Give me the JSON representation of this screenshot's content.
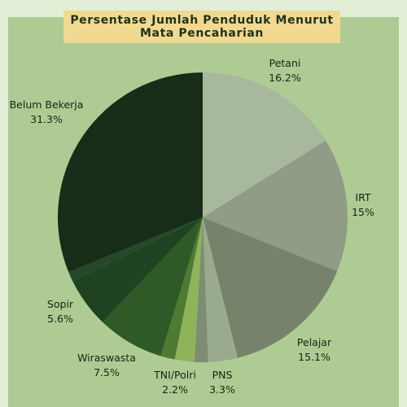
{
  "chart_data": {
    "type": "pie",
    "title_lines": [
      "Persentase Jumlah Penduduk Menurut",
      "Mata Pencaharian"
    ],
    "slices": [
      {
        "label": "Petani",
        "value": 16.2,
        "value_text": "16.2%",
        "color": "#a7b89c"
      },
      {
        "label": "IRT",
        "value": 15,
        "value_text": "15%",
        "color": "#909c85"
      },
      {
        "label": "Pelajar",
        "value": 15.1,
        "value_text": "15.1%",
        "color": "#76836a"
      },
      {
        "label": "PNS",
        "value": 3.3,
        "value_text": "3.3%",
        "color": "#9aab8d"
      },
      {
        "label": "",
        "value": 1.5,
        "value_text": "",
        "color": "#7d8c72"
      },
      {
        "label": "TNI/Polri",
        "value": 2.2,
        "value_text": "2.2%",
        "color": "#8db35b"
      },
      {
        "label": "",
        "value": 1.6,
        "value_text": "",
        "color": "#4e7a32"
      },
      {
        "label": "Wiraswasta",
        "value": 7.5,
        "value_text": "7.5%",
        "color": "#2f5927"
      },
      {
        "label": "Sopir",
        "value": 5.6,
        "value_text": "5.6%",
        "color": "#1f4220"
      },
      {
        "label": "",
        "value": 1.1,
        "value_text": "",
        "color": "#24482a"
      },
      {
        "label": "Belum Bekerja",
        "value": 31.3,
        "value_text": "31.3%",
        "color": "#182c18"
      }
    ]
  },
  "colors": {
    "background": "#e3eed6",
    "panel": "#aecb94",
    "title_box": "#f1d992",
    "text": "#17250f"
  }
}
